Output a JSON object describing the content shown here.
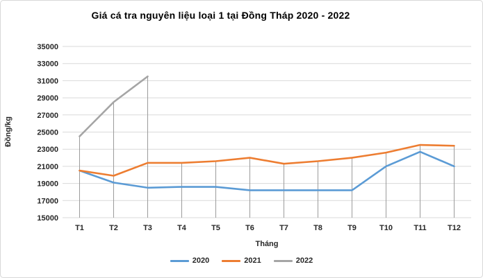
{
  "title": "Giá cá tra nguyên liệu loại 1 tại Đồng Tháp 2020 - 2022",
  "chart_data": {
    "type": "line",
    "title": "Giá cá tra nguyên liệu loại 1 tại Đồng Tháp 2020 - 2022",
    "xlabel": "Tháng",
    "ylabel": "Đồng/kg",
    "categories": [
      "T1",
      "T2",
      "T3",
      "T4",
      "T5",
      "T6",
      "T7",
      "T8",
      "T9",
      "T10",
      "T11",
      "T12"
    ],
    "y_ticks": [
      15000,
      17000,
      19000,
      21000,
      23000,
      25000,
      27000,
      29000,
      31000,
      33000,
      35000
    ],
    "ylim": [
      15000,
      35000
    ],
    "grid": "horizontal gridlines + vertical drop lines at each category",
    "legend_position": "bottom",
    "series": [
      {
        "name": "2020",
        "color": "#5B9BD5",
        "values": [
          20500,
          19100,
          18500,
          18600,
          18600,
          18200,
          18200,
          18200,
          18200,
          21000,
          22700,
          21000
        ]
      },
      {
        "name": "2021",
        "color": "#ED7D31",
        "values": [
          20500,
          19900,
          21400,
          21400,
          21600,
          22000,
          21300,
          21600,
          22000,
          22600,
          23500,
          23400
        ]
      },
      {
        "name": "2022",
        "color": "#A5A5A5",
        "values": [
          24500,
          28500,
          31500,
          null,
          null,
          null,
          null,
          null,
          null,
          null,
          null,
          null
        ]
      }
    ],
    "gridline_color": "#D9D9D9",
    "dropline_color": "#9B9B9B",
    "tick_label_color": "#262626"
  }
}
